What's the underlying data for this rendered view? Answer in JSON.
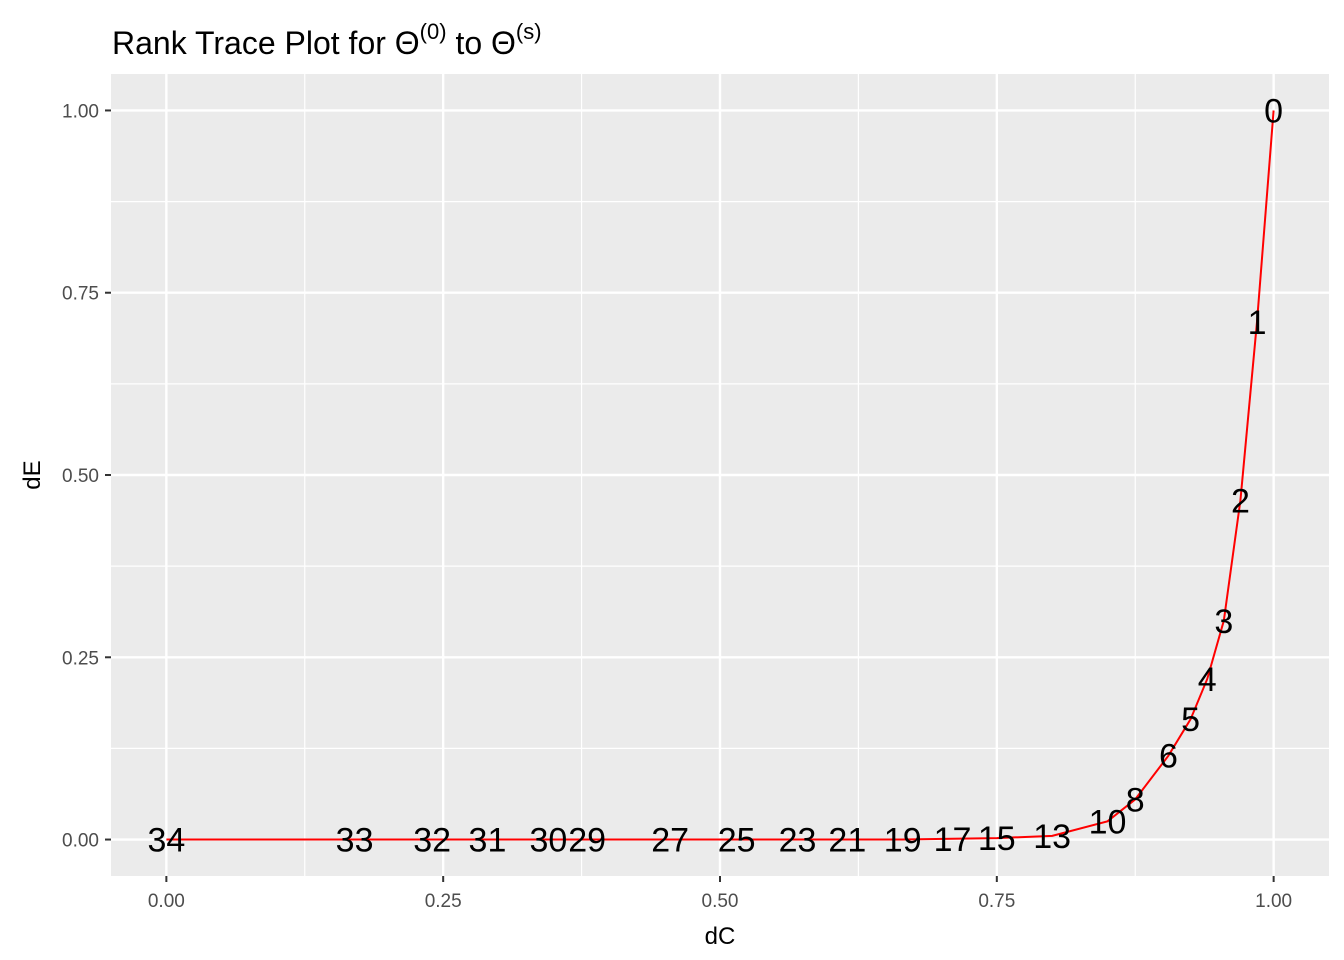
{
  "chart_data": {
    "type": "line",
    "title": {
      "main": "Rank Trace Plot for ",
      "symbol": "Θ",
      "sup1": "(0)",
      "mid": " to ",
      "sup2": "(s)"
    },
    "xlabel": "dC",
    "ylabel": "dE",
    "xlim": [
      -0.05,
      1.05
    ],
    "ylim": [
      -0.05,
      1.05
    ],
    "x_ticks": [
      0,
      0.25,
      0.5,
      0.75,
      1.0
    ],
    "x_tick_labels": [
      "0.00",
      "0.25",
      "0.50",
      "0.75",
      "1.00"
    ],
    "y_ticks": [
      0,
      0.25,
      0.5,
      0.75,
      1.0
    ],
    "y_tick_labels": [
      "0.00",
      "0.25",
      "0.50",
      "0.75",
      "1.00"
    ],
    "grid": true,
    "line_color": "#ff0000",
    "panel_color": "#ebebeb",
    "grid_color": "#ffffff",
    "series": [
      {
        "points": [
          {
            "label": "0",
            "x": 1.0,
            "y": 1.0
          },
          {
            "label": "1",
            "x": 0.985,
            "y": 0.71
          },
          {
            "label": "2",
            "x": 0.97,
            "y": 0.465
          },
          {
            "label": "3",
            "x": 0.955,
            "y": 0.3
          },
          {
            "label": "4",
            "x": 0.94,
            "y": 0.22
          },
          {
            "label": "5",
            "x": 0.925,
            "y": 0.165
          },
          {
            "label": "6",
            "x": 0.905,
            "y": 0.115
          },
          {
            "label": "8",
            "x": 0.875,
            "y": 0.055
          },
          {
            "label": "10",
            "x": 0.85,
            "y": 0.025
          },
          {
            "label": "13",
            "x": 0.8,
            "y": 0.005
          },
          {
            "label": "15",
            "x": 0.75,
            "y": 0.002
          },
          {
            "label": "17",
            "x": 0.71,
            "y": 0.001
          },
          {
            "label": "19",
            "x": 0.665,
            "y": 0.0
          },
          {
            "label": "21",
            "x": 0.615,
            "y": 0.0
          },
          {
            "label": "23",
            "x": 0.57,
            "y": 0.0
          },
          {
            "label": "25",
            "x": 0.515,
            "y": 0.0
          },
          {
            "label": "27",
            "x": 0.455,
            "y": 0.0
          },
          {
            "label": "29",
            "x": 0.38,
            "y": 0.0
          },
          {
            "label": "30",
            "x": 0.345,
            "y": 0.0
          },
          {
            "label": "31",
            "x": 0.29,
            "y": 0.0
          },
          {
            "label": "32",
            "x": 0.24,
            "y": 0.0
          },
          {
            "label": "33",
            "x": 0.17,
            "y": 0.0
          },
          {
            "label": "34",
            "x": 0.0,
            "y": 0.0
          }
        ]
      }
    ]
  }
}
